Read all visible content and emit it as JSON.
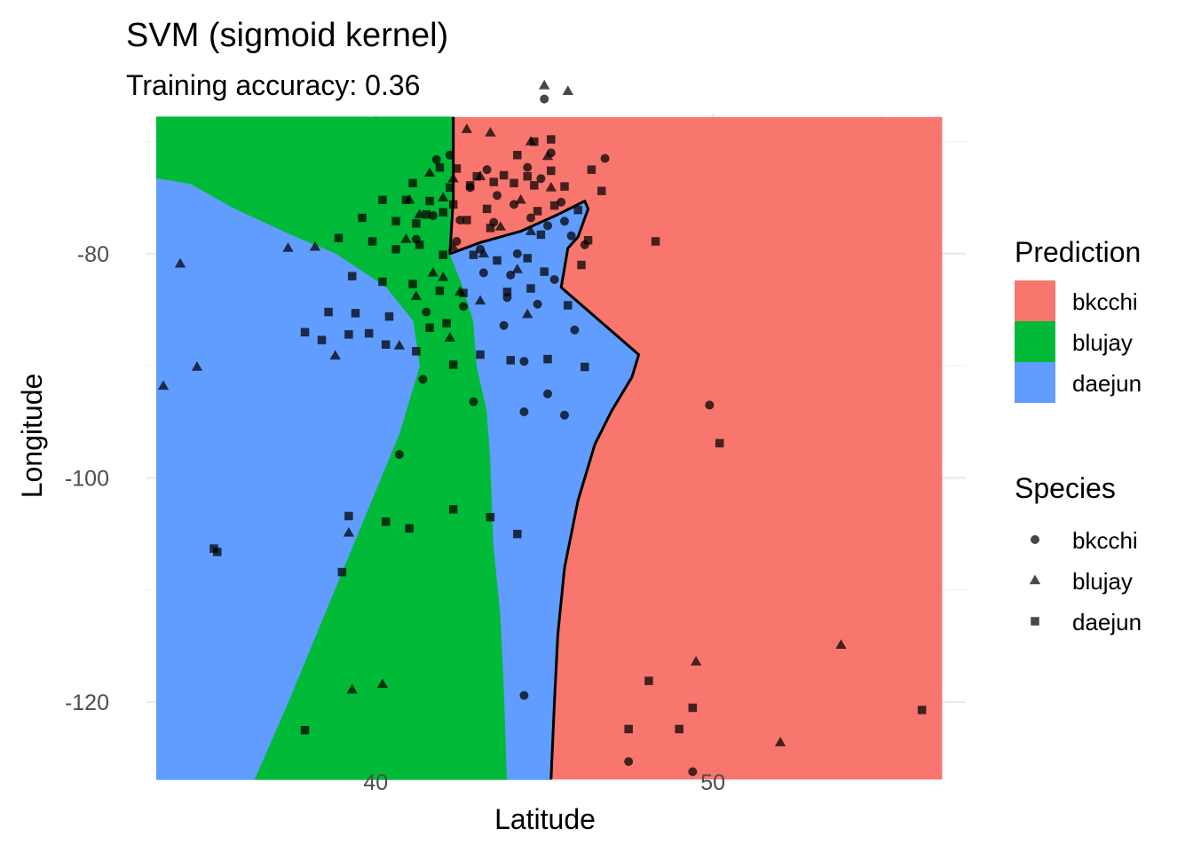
{
  "chart_data": {
    "type": "scatter",
    "title": "SVM (sigmoid kernel)",
    "subtitle": "Training accuracy: 0.36",
    "xlabel": "Latitude",
    "ylabel": "Longitude",
    "xlim": [
      33.2,
      57.5
    ],
    "ylim": [
      -124.5,
      -67.5
    ],
    "x_ticks": [
      40,
      50
    ],
    "y_ticks": [
      -80,
      -100,
      -120
    ],
    "grid": true,
    "legend_position": "right",
    "prediction_legend": {
      "title": "Prediction",
      "items": [
        {
          "label": "bkcchi",
          "color": "#F8766D"
        },
        {
          "label": "blujay",
          "color": "#00BA38"
        },
        {
          "label": "daejun",
          "color": "#619CFF"
        }
      ]
    },
    "species_legend": {
      "title": "Species",
      "items": [
        {
          "label": "bkcchi",
          "shape": "circle"
        },
        {
          "label": "blujay",
          "shape": "triangle"
        },
        {
          "label": "daejun",
          "shape": "square"
        }
      ]
    },
    "regions": [
      {
        "name": "blujay",
        "color": "#00BA38",
        "polygon": [
          [
            33.5,
            -67.8
          ],
          [
            42.3,
            -67.8
          ],
          [
            42.3,
            -75
          ],
          [
            42.2,
            -80
          ],
          [
            42.6,
            -83
          ],
          [
            42.9,
            -86
          ],
          [
            43.0,
            -90
          ],
          [
            43.3,
            -94
          ],
          [
            43.4,
            -98
          ],
          [
            43.5,
            -106
          ],
          [
            43.7,
            -112
          ],
          [
            43.8,
            -118
          ],
          [
            43.9,
            -126.9
          ],
          [
            36.4,
            -126.9
          ],
          [
            37.4,
            -120
          ],
          [
            38.5,
            -112
          ],
          [
            39.6,
            -104
          ],
          [
            40.7,
            -96
          ],
          [
            41.3,
            -90
          ],
          [
            41.1,
            -86
          ],
          [
            40.3,
            -83
          ],
          [
            38.8,
            -80
          ],
          [
            37.6,
            -78.5
          ],
          [
            35.8,
            -76
          ],
          [
            34.5,
            -73.8
          ],
          [
            33.5,
            -73.3
          ]
        ]
      },
      {
        "name": "daejun",
        "color": "#619CFF",
        "polygon": [
          [
            33.5,
            -73.3
          ],
          [
            34.5,
            -73.8
          ],
          [
            35.8,
            -76
          ],
          [
            37.6,
            -78.5
          ],
          [
            38.8,
            -80
          ],
          [
            40.3,
            -83
          ],
          [
            41.1,
            -86
          ],
          [
            41.3,
            -90
          ],
          [
            40.7,
            -96
          ],
          [
            39.6,
            -104
          ],
          [
            38.5,
            -112
          ],
          [
            37.4,
            -120
          ],
          [
            36.4,
            -126.9
          ],
          [
            33.5,
            -126.9
          ]
        ]
      },
      {
        "name": "daejun",
        "color": "#619CFF",
        "polygon": [
          [
            42.2,
            -80
          ],
          [
            43.1,
            -79
          ],
          [
            44.3,
            -78
          ],
          [
            45.4,
            -76.5
          ],
          [
            46.2,
            -75.3
          ],
          [
            46.3,
            -76
          ],
          [
            46.0,
            -78.5
          ],
          [
            45.7,
            -79.5
          ],
          [
            45.5,
            -83
          ],
          [
            47.8,
            -89
          ],
          [
            47.6,
            -91
          ],
          [
            47.0,
            -94
          ],
          [
            46.5,
            -97
          ],
          [
            46.0,
            -102
          ],
          [
            45.6,
            -108
          ],
          [
            45.4,
            -114
          ],
          [
            45.3,
            -120
          ],
          [
            45.2,
            -126.9
          ],
          [
            43.9,
            -126.9
          ],
          [
            43.8,
            -118
          ],
          [
            43.7,
            -112
          ],
          [
            43.5,
            -106
          ],
          [
            43.4,
            -98
          ],
          [
            43.3,
            -94
          ],
          [
            43.0,
            -90
          ],
          [
            42.9,
            -86
          ],
          [
            42.6,
            -83
          ]
        ]
      }
    ],
    "boundaries": [
      [
        [
          42.3,
          -67.8
        ],
        [
          42.3,
          -75
        ],
        [
          42.2,
          -80
        ],
        [
          43.1,
          -79
        ],
        [
          44.3,
          -78
        ],
        [
          45.4,
          -76.5
        ],
        [
          46.2,
          -75.3
        ],
        [
          46.3,
          -76
        ],
        [
          46.0,
          -78.5
        ],
        [
          45.7,
          -79.5
        ],
        [
          45.5,
          -83
        ],
        [
          47.8,
          -89
        ],
        [
          47.6,
          -91
        ],
        [
          47.0,
          -94
        ],
        [
          46.5,
          -97
        ],
        [
          46.0,
          -102
        ],
        [
          45.6,
          -108
        ],
        [
          45.4,
          -114
        ],
        [
          45.3,
          -120
        ],
        [
          45.2,
          -126.9
        ]
      ]
    ],
    "series": [
      {
        "name": "bkcchi",
        "shape": "circle",
        "x": [
          45.0,
          41.8,
          42.2,
          43.3,
          44.5,
          45.2,
          46.8,
          44.9,
          42.8,
          43.6,
          44.1,
          45.5,
          41.7,
          42.5,
          43.5,
          44.6,
          45.1,
          45.6,
          41.2,
          42.4,
          43.1,
          44.2,
          45.8,
          46.2,
          43.2,
          44.0,
          45.3,
          43.9,
          44.8,
          41.5,
          42.6,
          43.8,
          45.9,
          44.4,
          49.9,
          44.4,
          45.1,
          45.6,
          41.4,
          40.7,
          42.9,
          44.4,
          49.4,
          47.5
        ],
        "y": [
          -66.2,
          -71.6,
          -71.2,
          -72.5,
          -72.3,
          -71.0,
          -71.5,
          -73.3,
          -74.1,
          -74.8,
          -75.6,
          -75.4,
          -76.6,
          -77.0,
          -77.2,
          -76.8,
          -77.5,
          -77.1,
          -78.7,
          -78.9,
          -79.6,
          -80.0,
          -78.4,
          -79.2,
          -81.7,
          -81.9,
          -82.3,
          -83.9,
          -84.5,
          -85.2,
          -84.7,
          -86.4,
          -86.8,
          -89.6,
          -93.5,
          -94.1,
          -92.5,
          -94.4,
          -91.2,
          -97.9,
          -93.2,
          -119.4,
          -126.2,
          -125.3
        ]
      },
      {
        "name": "blujay",
        "shape": "triangle",
        "x": [
          45.0,
          45.7,
          42.7,
          43.4,
          44.6,
          45.1,
          41.6,
          42.3,
          43.1,
          44.3,
          45.2,
          41.0,
          42.0,
          43.7,
          44.6,
          41.3,
          40.9,
          42.3,
          43.2,
          44.2,
          41.7,
          42.0,
          41.2,
          42.5,
          43.1,
          44.5,
          40.7,
          42.2,
          38.2,
          34.2,
          34.7,
          33.7,
          37.4,
          38.8,
          39.2,
          39.3,
          40.2,
          49.5,
          53.8,
          52.0
        ],
        "y": [
          -65.0,
          -65.5,
          -68.9,
          -69.2,
          -70.0,
          -71.3,
          -72.8,
          -73.3,
          -73.1,
          -75.2,
          -74.1,
          -75.2,
          -75.0,
          -77.6,
          -78.0,
          -76.5,
          -78.7,
          -79.4,
          -80.0,
          -81.4,
          -81.7,
          -82.1,
          -83.8,
          -83.4,
          -84.2,
          -85.4,
          -88.2,
          -87.5,
          -79.4,
          -80.9,
          -90.1,
          -91.8,
          -79.5,
          -89.1,
          -104.9,
          -118.9,
          -118.4,
          -116.4,
          -114.9,
          -123.6
        ]
      },
      {
        "name": "daejun",
        "shape": "square",
        "x": [
          45.2,
          44.7,
          44.2,
          41.9,
          42.4,
          43.0,
          43.8,
          44.5,
          45.2,
          46.4,
          41.1,
          42.2,
          42.8,
          43.5,
          44.1,
          44.7,
          45.6,
          46.7,
          40.2,
          40.9,
          41.6,
          42.3,
          43.3,
          44.8,
          45.3,
          46.0,
          41.5,
          42.0,
          39.6,
          40.6,
          41.2,
          42.7,
          43.4,
          44.9,
          46.3,
          38.9,
          39.9,
          40.6,
          41.3,
          42.0,
          42.9,
          43.6,
          44.5,
          45.0,
          46.1,
          39.3,
          40.2,
          41.1,
          41.9,
          42.6,
          43.9,
          44.6,
          45.7,
          38.6,
          39.4,
          40.4,
          41.6,
          42.1,
          37.9,
          38.4,
          39.2,
          39.8,
          40.3,
          41.2,
          42.3,
          43.1,
          44.0,
          45.1,
          46.2,
          48.3,
          50.2,
          44.2,
          35.2,
          35.3,
          39.0,
          37.9,
          47.5,
          48.1,
          49.0,
          49.4,
          56.2,
          39.2,
          40.3,
          41.0,
          42.3,
          43.4
        ],
        "y": [
          -69.8,
          -70.0,
          -71.2,
          -72.3,
          -72.4,
          -73.1,
          -73.0,
          -73.1,
          -72.6,
          -72.5,
          -73.7,
          -74.1,
          -73.9,
          -73.6,
          -73.7,
          -73.9,
          -74.0,
          -74.4,
          -75.2,
          -75.2,
          -75.3,
          -75.6,
          -76.0,
          -76.2,
          -75.7,
          -76.1,
          -76.5,
          -76.3,
          -76.8,
          -77.1,
          -77.3,
          -77.0,
          -77.7,
          -78.3,
          -78.8,
          -78.6,
          -78.9,
          -79.6,
          -79.2,
          -80.1,
          -80.1,
          -80.6,
          -80.4,
          -81.6,
          -81.0,
          -82.0,
          -82.5,
          -82.7,
          -83.3,
          -83.5,
          -83.4,
          -83.1,
          -84.6,
          -85.2,
          -85.3,
          -85.6,
          -86.6,
          -86.2,
          -87.0,
          -87.7,
          -87.2,
          -87.1,
          -88.1,
          -88.7,
          -89.9,
          -89.0,
          -89.5,
          -89.4,
          -90.1,
          -78.9,
          -96.9,
          -105.0,
          -106.3,
          -106.6,
          -108.4,
          -122.5,
          -122.4,
          -118.1,
          -122.4,
          -120.5,
          -120.7,
          -103.4,
          -103.9,
          -104.5,
          -102.8,
          -103.5
        ]
      }
    ]
  }
}
